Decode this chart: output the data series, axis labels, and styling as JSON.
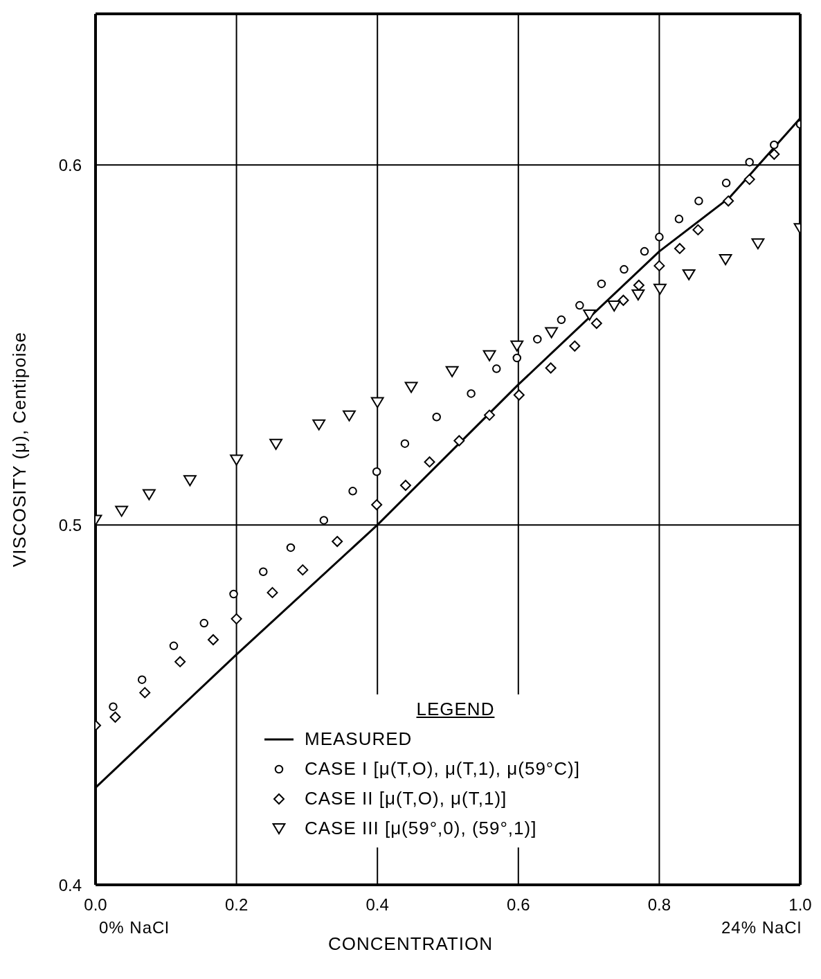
{
  "chart_data": {
    "type": "scatter",
    "xlabel": "CONCENTRATION",
    "ylabel": "VISCOSITY (μ), Centipoise",
    "legend_title": "LEGEND",
    "annotations": [
      "0% NaCl",
      "24% NaCl"
    ],
    "xlim": [
      0,
      1
    ],
    "xticks": [
      {
        "value": 0,
        "label": "0.0"
      },
      0.2,
      0.4,
      0.6,
      0.8,
      {
        "value": 1,
        "label": "1.0"
      }
    ],
    "ylim": [
      0.4,
      0.642
    ],
    "yticks": [
      0.4,
      0.5,
      0.6
    ],
    "grid": true,
    "legend": "bottom right",
    "series": [
      {
        "name": "MEASURED",
        "type": "line",
        "marker": "none",
        "line_style": "solid",
        "color": "#000000",
        "x": [
          0,
          0.2,
          0.4,
          0.6,
          0.8,
          0.9,
          1.0
        ],
        "values": [
          0.427,
          0.464,
          0.5,
          0.539,
          0.576,
          0.591,
          0.613
        ]
      },
      {
        "name": "CASE I  [μ(T,O), μ(T,1), μ(59°C)]",
        "marker": "circle",
        "color": "#000000",
        "x": [
          0.025,
          0.066,
          0.111,
          0.154,
          0.196,
          0.238,
          0.277,
          0.324,
          0.365,
          0.399,
          0.439,
          0.484,
          0.533,
          0.569,
          0.598,
          0.627,
          0.661,
          0.687,
          0.718,
          0.75,
          0.779,
          0.8,
          0.828,
          0.856,
          0.895,
          0.928,
          0.963,
          1.0
        ],
        "values": [
          0.4495,
          0.457,
          0.4664,
          0.4727,
          0.4808,
          0.487,
          0.4937,
          0.5013,
          0.5094,
          0.5148,
          0.5226,
          0.53,
          0.5365,
          0.5434,
          0.5464,
          0.5516,
          0.557,
          0.561,
          0.567,
          0.571,
          0.576,
          0.58,
          0.585,
          0.59,
          0.595,
          0.6008,
          0.6056,
          0.6113
        ]
      },
      {
        "name": "CASE II  [μ(T,O), μ(T,1)]",
        "marker": "diamond",
        "color": "#000000",
        "x": [
          0,
          0.028,
          0.07,
          0.12,
          0.167,
          0.2,
          0.251,
          0.294,
          0.343,
          0.399,
          0.44,
          0.474,
          0.516,
          0.559,
          0.601,
          0.646,
          0.68,
          0.711,
          0.749,
          0.771,
          0.8,
          0.829,
          0.855,
          0.898,
          0.928,
          0.963
        ],
        "values": [
          0.4443,
          0.4466,
          0.4534,
          0.462,
          0.4681,
          0.4739,
          0.4812,
          0.4875,
          0.4954,
          0.5056,
          0.511,
          0.5175,
          0.5234,
          0.5305,
          0.5361,
          0.5436,
          0.5497,
          0.556,
          0.5624,
          0.5666,
          0.572,
          0.5768,
          0.582,
          0.59,
          0.596,
          0.603
        ]
      },
      {
        "name": "CASE III  [μ(59°,0), (59°,1)]",
        "marker": "triangle",
        "color": "#000000",
        "x": [
          0,
          0.037,
          0.076,
          0.134,
          0.2,
          0.256,
          0.317,
          0.36,
          0.4,
          0.448,
          0.506,
          0.559,
          0.598,
          0.647,
          0.701,
          0.736,
          0.77,
          0.801,
          0.842,
          0.894,
          0.94,
          1.0
        ],
        "values": [
          0.5013,
          0.5038,
          0.5084,
          0.5123,
          0.518,
          0.5224,
          0.5278,
          0.5303,
          0.534,
          0.5382,
          0.5426,
          0.547,
          0.5497,
          0.5534,
          0.5583,
          0.5608,
          0.5639,
          0.5655,
          0.5695,
          0.5737,
          0.5781,
          0.5823
        ]
      }
    ]
  }
}
